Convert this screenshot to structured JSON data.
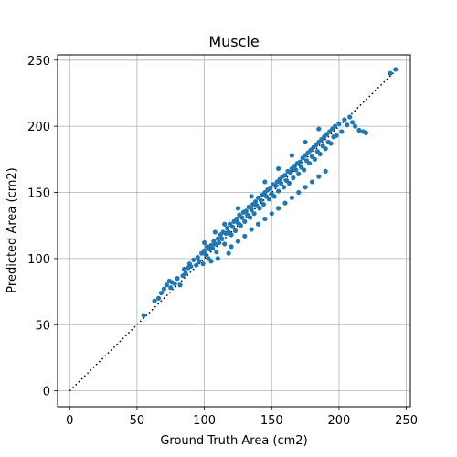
{
  "chart_data": {
    "type": "scatter",
    "title": "Muscle",
    "xlabel": "Ground Truth Area (cm2)",
    "ylabel": "Predicted Area (cm2)",
    "xlim": [
      -9,
      253
    ],
    "ylim": [
      -12,
      254
    ],
    "xticks": [
      0,
      50,
      100,
      150,
      200,
      250
    ],
    "yticks": [
      0,
      50,
      100,
      150,
      200,
      250
    ],
    "grid": true,
    "point_color": "#1f77b4",
    "reference_line": {
      "style": "dotted",
      "color": "#000000",
      "from": [
        0,
        0
      ],
      "to": [
        242,
        242
      ]
    },
    "points": [
      [
        55,
        57
      ],
      [
        63,
        68
      ],
      [
        66,
        70
      ],
      [
        68,
        74
      ],
      [
        70,
        77
      ],
      [
        72,
        80
      ],
      [
        74,
        83
      ],
      [
        75,
        78
      ],
      [
        76,
        82
      ],
      [
        78,
        81
      ],
      [
        80,
        85
      ],
      [
        82,
        80
      ],
      [
        84,
        87
      ],
      [
        85,
        92
      ],
      [
        86,
        89
      ],
      [
        88,
        93
      ],
      [
        89,
        96
      ],
      [
        90,
        94
      ],
      [
        92,
        99
      ],
      [
        94,
        95
      ],
      [
        95,
        101
      ],
      [
        96,
        98
      ],
      [
        98,
        104
      ],
      [
        99,
        96
      ],
      [
        100,
        106
      ],
      [
        101,
        103
      ],
      [
        102,
        109
      ],
      [
        103,
        100
      ],
      [
        104,
        107
      ],
      [
        105,
        110
      ],
      [
        106,
        108
      ],
      [
        107,
        113
      ],
      [
        108,
        111
      ],
      [
        109,
        105
      ],
      [
        110,
        115
      ],
      [
        111,
        112
      ],
      [
        112,
        118
      ],
      [
        113,
        115
      ],
      [
        114,
        120
      ],
      [
        115,
        111
      ],
      [
        116,
        119
      ],
      [
        117,
        123
      ],
      [
        118,
        120
      ],
      [
        119,
        126
      ],
      [
        120,
        118
      ],
      [
        121,
        124
      ],
      [
        122,
        128
      ],
      [
        123,
        121
      ],
      [
        124,
        130
      ],
      [
        125,
        127
      ],
      [
        126,
        133
      ],
      [
        127,
        125
      ],
      [
        128,
        131
      ],
      [
        129,
        135
      ],
      [
        130,
        128
      ],
      [
        131,
        136
      ],
      [
        132,
        133
      ],
      [
        133,
        139
      ],
      [
        134,
        131
      ],
      [
        135,
        137
      ],
      [
        136,
        141
      ],
      [
        137,
        134
      ],
      [
        138,
        143
      ],
      [
        139,
        140
      ],
      [
        140,
        146
      ],
      [
        141,
        138
      ],
      [
        142,
        144
      ],
      [
        143,
        148
      ],
      [
        144,
        141
      ],
      [
        145,
        150
      ],
      [
        146,
        147
      ],
      [
        147,
        152
      ],
      [
        148,
        145
      ],
      [
        149,
        153
      ],
      [
        150,
        149
      ],
      [
        151,
        156
      ],
      [
        152,
        147
      ],
      [
        153,
        155
      ],
      [
        154,
        158
      ],
      [
        155,
        151
      ],
      [
        156,
        160
      ],
      [
        157,
        157
      ],
      [
        158,
        162
      ],
      [
        159,
        154
      ],
      [
        160,
        163
      ],
      [
        161,
        159
      ],
      [
        162,
        166
      ],
      [
        163,
        157
      ],
      [
        164,
        165
      ],
      [
        165,
        168
      ],
      [
        166,
        161
      ],
      [
        167,
        170
      ],
      [
        168,
        167
      ],
      [
        169,
        172
      ],
      [
        170,
        164
      ],
      [
        171,
        173
      ],
      [
        172,
        169
      ],
      [
        173,
        176
      ],
      [
        174,
        167
      ],
      [
        175,
        178
      ],
      [
        176,
        174
      ],
      [
        177,
        180
      ],
      [
        178,
        172
      ],
      [
        179,
        182
      ],
      [
        180,
        177
      ],
      [
        181,
        184
      ],
      [
        182,
        175
      ],
      [
        183,
        186
      ],
      [
        184,
        181
      ],
      [
        185,
        188
      ],
      [
        186,
        179
      ],
      [
        187,
        190
      ],
      [
        188,
        185
      ],
      [
        189,
        192
      ],
      [
        190,
        183
      ],
      [
        191,
        194
      ],
      [
        192,
        188
      ],
      [
        193,
        196
      ],
      [
        194,
        187
      ],
      [
        195,
        198
      ],
      [
        196,
        192
      ],
      [
        197,
        200
      ],
      [
        198,
        193
      ],
      [
        200,
        202
      ],
      [
        202,
        196
      ],
      [
        204,
        205
      ],
      [
        206,
        201
      ],
      [
        208,
        207
      ],
      [
        210,
        203
      ],
      [
        212,
        200
      ],
      [
        215,
        197
      ],
      [
        218,
        196
      ],
      [
        220,
        195
      ],
      [
        238,
        240
      ],
      [
        242,
        243
      ],
      [
        105,
        98
      ],
      [
        110,
        100
      ],
      [
        118,
        104
      ],
      [
        120,
        109
      ],
      [
        125,
        113
      ],
      [
        130,
        117
      ],
      [
        135,
        122
      ],
      [
        140,
        126
      ],
      [
        145,
        130
      ],
      [
        150,
        134
      ],
      [
        155,
        138
      ],
      [
        160,
        142
      ],
      [
        165,
        146
      ],
      [
        170,
        150
      ],
      [
        175,
        154
      ],
      [
        180,
        158
      ],
      [
        185,
        162
      ],
      [
        190,
        166
      ],
      [
        100,
        112
      ],
      [
        108,
        120
      ],
      [
        115,
        126
      ],
      [
        125,
        138
      ],
      [
        135,
        147
      ],
      [
        145,
        158
      ],
      [
        155,
        168
      ],
      [
        165,
        178
      ],
      [
        175,
        188
      ],
      [
        185,
        198
      ]
    ]
  }
}
